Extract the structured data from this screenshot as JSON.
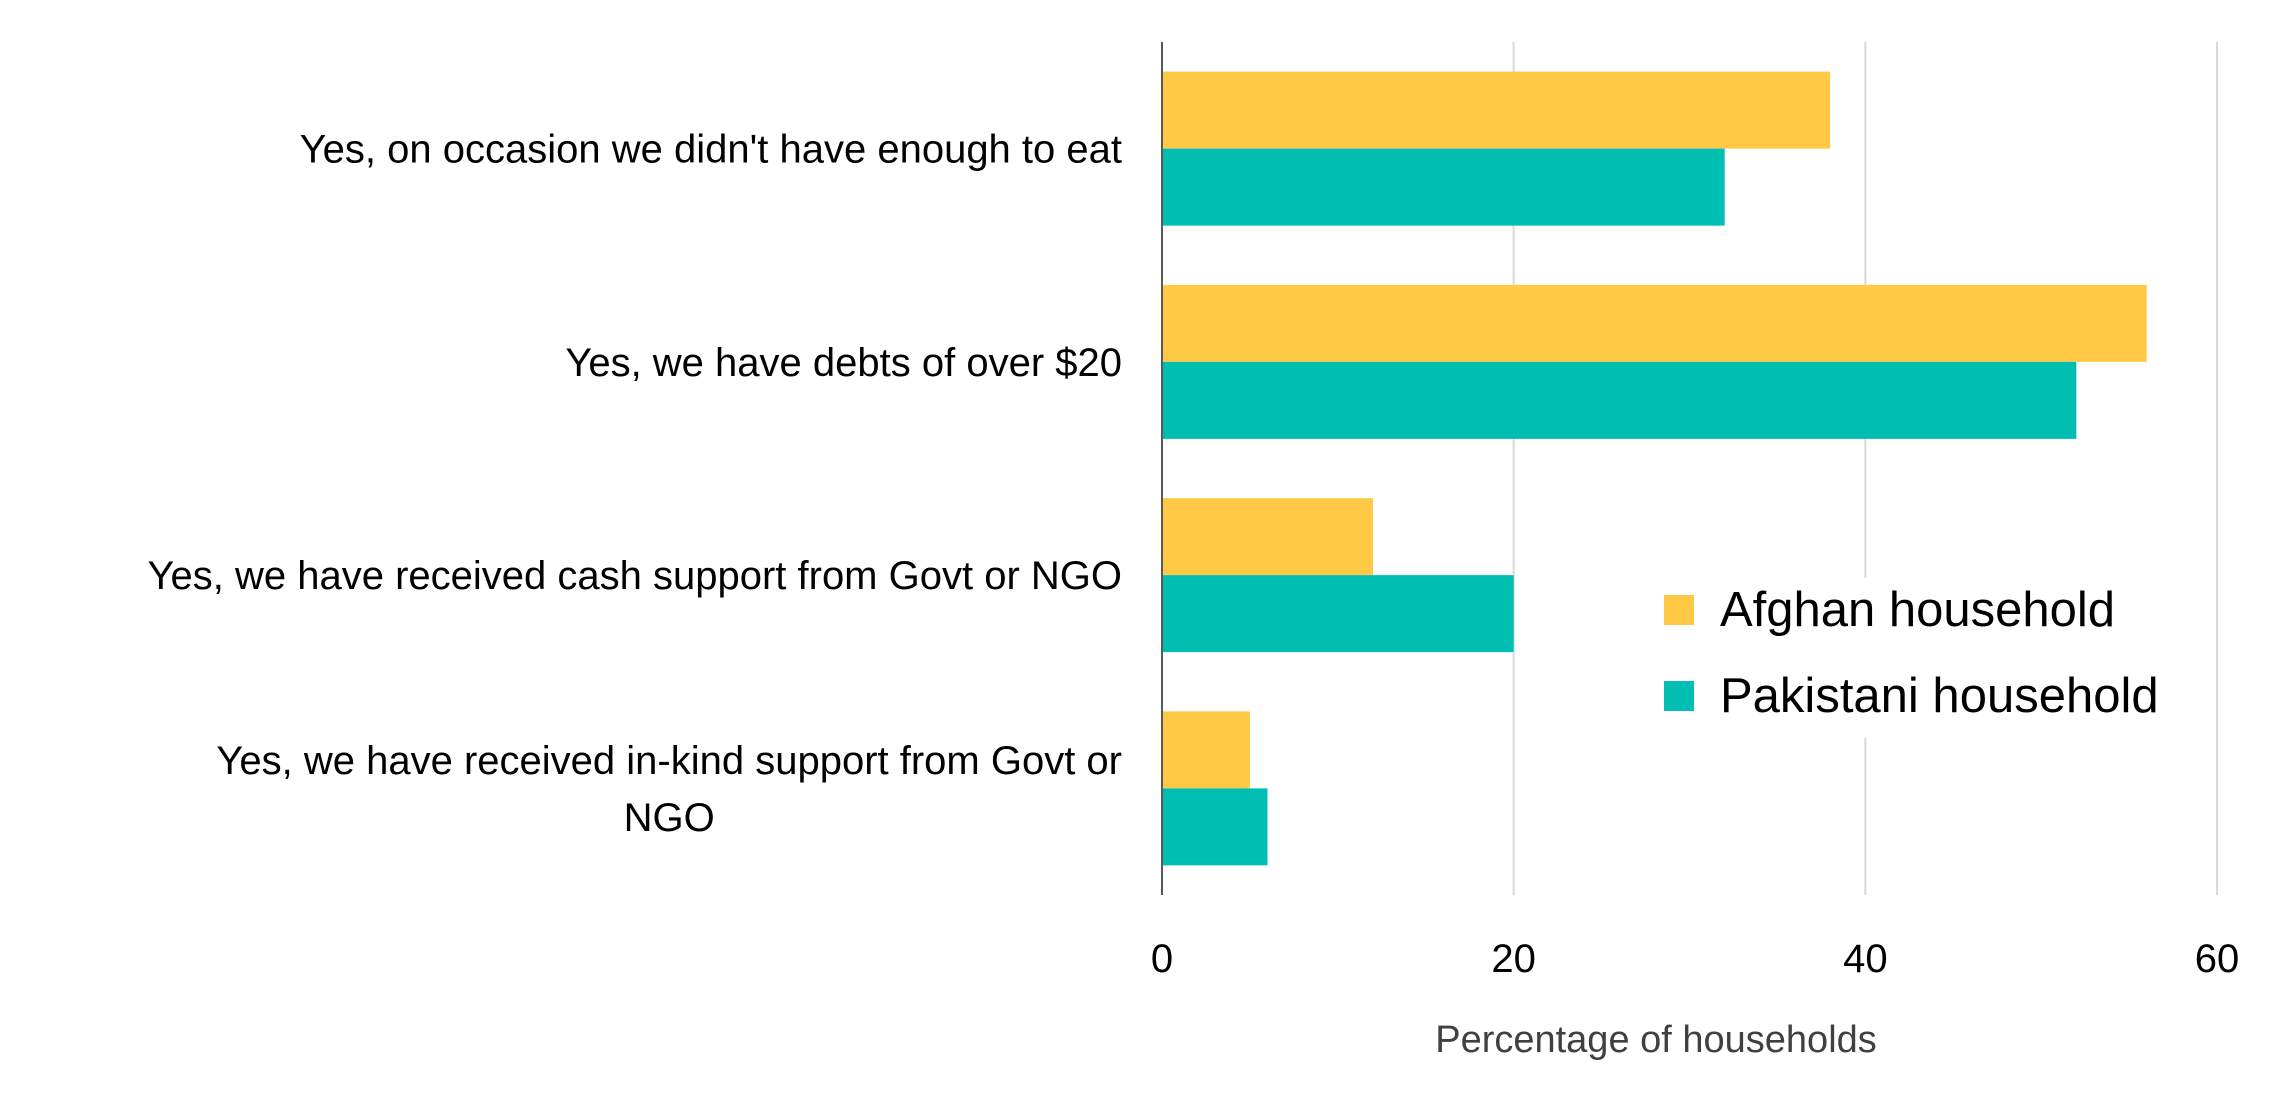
{
  "chart_data": {
    "type": "bar",
    "orientation": "horizontal",
    "categories": [
      "Yes, on occasion we didn't have enough to eat",
      "Yes, we have debts of over $20",
      "Yes, we have received cash support from Govt or NGO",
      "Yes, we have received in-kind support from Govt or NGO"
    ],
    "category_lines": [
      [
        "Yes, on occasion we didn't have enough to eat"
      ],
      [
        "Yes, we have debts of over $20"
      ],
      [
        "Yes, we have received cash support from Govt or NGO"
      ],
      [
        "Yes, we have received in-kind support from Govt or",
        "NGO"
      ]
    ],
    "series": [
      {
        "name": "Afghan household",
        "color": "#FFC845",
        "values": [
          38,
          56,
          12,
          5
        ]
      },
      {
        "name": "Pakistani household",
        "color": "#00BFB2",
        "values": [
          32,
          52,
          20,
          6
        ]
      }
    ],
    "xlabel": "Percentage of households",
    "ylabel": "",
    "xlim": [
      0,
      60
    ],
    "xticks": [
      0,
      20,
      40,
      60
    ],
    "xtick_labels": [
      "0",
      "20",
      "40",
      "60"
    ],
    "grid": true,
    "legend": {
      "position": "inside-right",
      "entries": [
        "Afghan household",
        "Pakistani household"
      ]
    },
    "colors": {
      "gridline": "#D9D9D9",
      "axis": "#595959"
    }
  }
}
